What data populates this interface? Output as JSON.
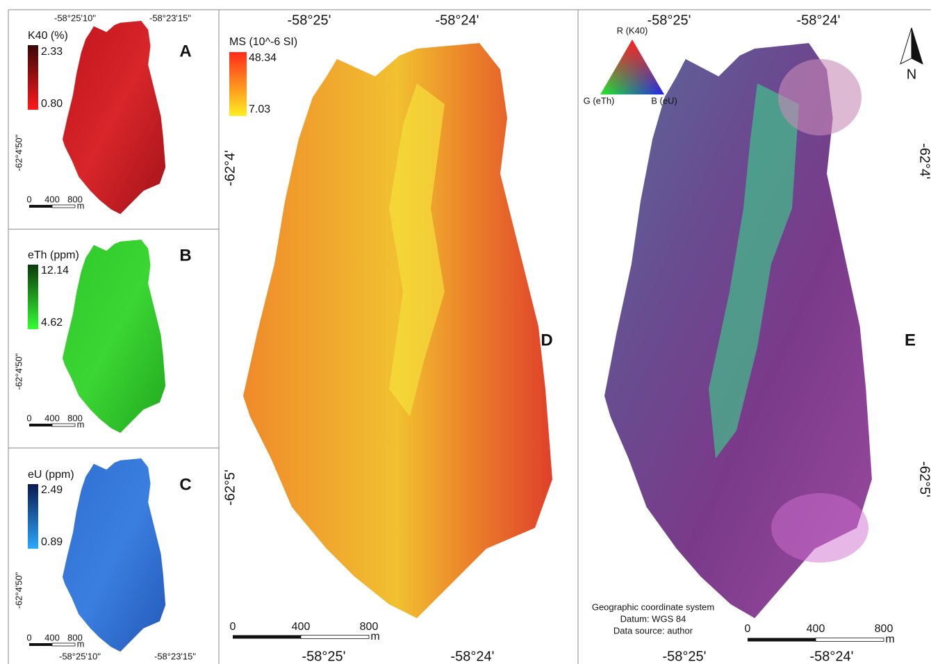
{
  "panels": [
    {
      "label": "A",
      "legend": {
        "title": "K40 (%)",
        "max": "2.33",
        "min": "0.80"
      },
      "top_coords": [
        "-58°25'10\"",
        "-58°23'15\""
      ],
      "lat": "-62°4'50\"",
      "scale": [
        "0",
        "400",
        "800",
        "m"
      ]
    },
    {
      "label": "B",
      "legend": {
        "title": "eTh (ppm)",
        "max": "12.14",
        "min": "4.62"
      },
      "lat": "-62°4'50\"",
      "scale": [
        "0",
        "400",
        "800",
        "m"
      ]
    },
    {
      "label": "C",
      "legend": {
        "title": "eU (ppm)",
        "max": "2.49",
        "min": "0.89"
      },
      "lat": "-62°4'50\"",
      "scale": [
        "0",
        "400",
        "800",
        "m"
      ],
      "bottom_coords": [
        "-58°25'10\"",
        "-58°23'15\""
      ]
    },
    {
      "label": "D",
      "legend": {
        "title": "MS (10^-6 SI)",
        "max": "48.34",
        "min": "7.03"
      },
      "top_coords": [
        "-58°25'",
        "-58°24'"
      ],
      "bottom_coords": [
        "-58°25'",
        "-58°24'"
      ],
      "lat": [
        "-62°4'",
        "-62°5'"
      ],
      "scale": [
        "0",
        "400",
        "800",
        "m"
      ]
    },
    {
      "label": "E",
      "triangle": [
        "R (K40)",
        "G (eTh)",
        "B (eU)"
      ],
      "north": "N",
      "notes": [
        "Geographic coordinate system",
        "Datum: WGS 84",
        "Data source: author"
      ],
      "top_coords": [
        "-58°25'",
        "-58°24'"
      ],
      "bottom_coords": [
        "-58°25'",
        "-58°24'"
      ],
      "lat": [
        "-62°4'",
        "-62°5'"
      ],
      "scale": [
        "0",
        "400",
        "800",
        "m"
      ]
    }
  ]
}
